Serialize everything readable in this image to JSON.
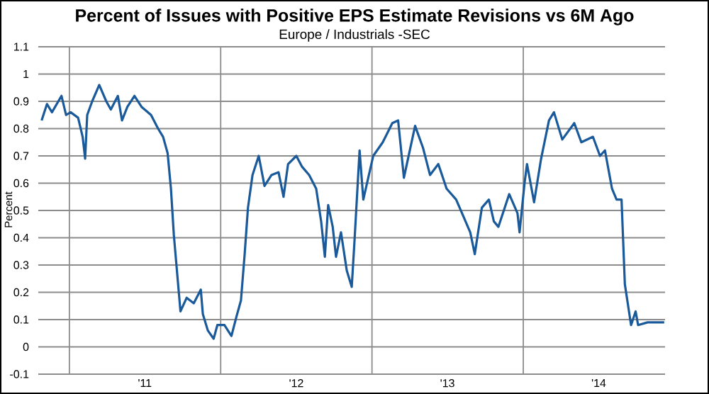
{
  "chart_data": {
    "type": "line",
    "title": "Percent of Issues with Positive EPS Estimate Revisions vs 6M Ago",
    "subtitle": "Europe / Industrials -SEC",
    "ylabel": "Percent",
    "x": [
      "2010-10-26",
      "2010-11-08",
      "2010-11-20",
      "2010-12-13",
      "2010-12-24",
      "2011-01-04",
      "2011-01-22",
      "2011-02-02",
      "2011-02-08",
      "2011-02-13",
      "2011-02-25",
      "2011-03-14",
      "2011-03-31",
      "2011-04-11",
      "2011-04-28",
      "2011-05-08",
      "2011-05-21",
      "2011-06-07",
      "2011-06-24",
      "2011-07-17",
      "2011-08-03",
      "2011-08-15",
      "2011-08-26",
      "2011-09-03",
      "2011-09-10",
      "2011-09-18",
      "2011-09-26",
      "2011-10-11",
      "2011-10-28",
      "2011-11-14",
      "2011-11-19",
      "2011-12-01",
      "2011-12-15",
      "2011-12-24",
      "2012-01-10",
      "2012-01-27",
      "2012-02-08",
      "2012-02-19",
      "2012-02-28",
      "2012-03-07",
      "2012-03-18",
      "2012-04-02",
      "2012-04-16",
      "2012-05-03",
      "2012-05-20",
      "2012-06-01",
      "2012-06-12",
      "2012-07-02",
      "2012-07-16",
      "2012-08-02",
      "2012-08-19",
      "2012-08-31",
      "2012-09-09",
      "2012-09-17",
      "2012-09-28",
      "2012-10-06",
      "2012-10-18",
      "2012-11-01",
      "2012-11-13",
      "2012-11-19",
      "2012-12-02",
      "2012-12-11",
      "2013-01-04",
      "2013-01-27",
      "2013-02-19",
      "2013-03-05",
      "2013-03-19",
      "2013-04-15",
      "2013-05-04",
      "2013-05-21",
      "2013-06-10",
      "2013-06-30",
      "2013-07-23",
      "2013-08-09",
      "2013-08-26",
      "2013-09-06",
      "2013-09-23",
      "2013-10-10",
      "2013-10-22",
      "2013-11-02",
      "2013-11-28",
      "2013-12-18",
      "2013-12-23",
      "2014-01-04",
      "2014-01-10",
      "2014-01-27",
      "2014-02-13",
      "2014-03-04",
      "2014-03-16",
      "2014-04-05",
      "2014-05-04",
      "2014-05-21",
      "2014-06-18",
      "2014-07-05",
      "2014-07-17",
      "2014-08-03",
      "2014-08-14",
      "2014-08-26",
      "2014-09-03",
      "2014-09-18",
      "2014-09-29",
      "2014-10-05",
      "2014-10-28",
      "2014-12-07"
    ],
    "series": [
      {
        "color": "#1b5a9a",
        "values": [
          0.83,
          0.89,
          0.86,
          0.92,
          0.85,
          0.86,
          0.84,
          0.77,
          0.69,
          0.85,
          0.9,
          0.96,
          0.9,
          0.87,
          0.92,
          0.83,
          0.88,
          0.92,
          0.88,
          0.85,
          0.8,
          0.77,
          0.71,
          0.58,
          0.41,
          0.27,
          0.13,
          0.18,
          0.16,
          0.21,
          0.12,
          0.06,
          0.03,
          0.08,
          0.08,
          0.04,
          0.11,
          0.17,
          0.34,
          0.51,
          0.63,
          0.7,
          0.59,
          0.63,
          0.64,
          0.55,
          0.67,
          0.7,
          0.66,
          0.63,
          0.58,
          0.46,
          0.33,
          0.52,
          0.44,
          0.33,
          0.42,
          0.28,
          0.22,
          0.37,
          0.72,
          0.54,
          0.7,
          0.75,
          0.82,
          0.83,
          0.62,
          0.81,
          0.73,
          0.63,
          0.67,
          0.58,
          0.54,
          0.48,
          0.42,
          0.34,
          0.51,
          0.54,
          0.46,
          0.44,
          0.56,
          0.49,
          0.42,
          0.6,
          0.67,
          0.53,
          0.69,
          0.83,
          0.86,
          0.76,
          0.82,
          0.75,
          0.77,
          0.7,
          0.72,
          0.58,
          0.54,
          0.54,
          0.23,
          0.08,
          0.13,
          0.08,
          0.09,
          0.09
        ]
      }
    ],
    "xlim": [
      "2010-10-18",
      "2014-12-09"
    ],
    "xticks": [
      {
        "value": "2011-01-01",
        "label": null
      },
      {
        "value": "2011-07-02",
        "label": "'11"
      },
      {
        "value": "2012-01-01",
        "label": null
      },
      {
        "value": "2012-07-02",
        "label": "'12"
      },
      {
        "value": "2013-01-01",
        "label": null
      },
      {
        "value": "2013-07-02",
        "label": "'13"
      },
      {
        "value": "2014-01-01",
        "label": null
      },
      {
        "value": "2014-07-02",
        "label": "'14"
      }
    ],
    "ylim": [
      -0.1,
      1.1
    ],
    "yticks": [
      -0.1,
      0,
      0.1,
      0.2,
      0.3,
      0.4,
      0.5,
      0.6,
      0.7,
      0.8,
      0.9,
      1,
      1.1
    ],
    "grid": true,
    "line_style": "solid",
    "marker": "none"
  }
}
